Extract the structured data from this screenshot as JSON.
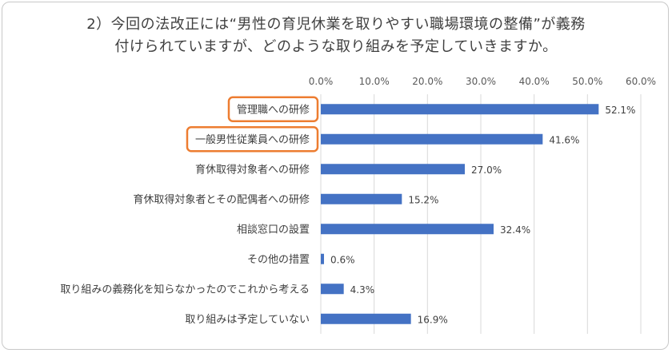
{
  "chart_data": {
    "type": "bar",
    "orientation": "horizontal",
    "title_lines": [
      "2）今回の法改正には“男性の育児休業を取りやすい職場環境の整備”が義務",
      "付けられていますが、どのような取り組みを予定していきますか。"
    ],
    "categories": [
      "管理職への研修",
      "一般男性従業員への研修",
      "育休取得対象者への研修",
      "育休取得対象者とその配偶者への研修",
      "相談窓口の設置",
      "その他の措置",
      "取り組みの義務化を知らなかったのでこれから考える",
      "取り組みは予定していない"
    ],
    "values": [
      52.1,
      41.6,
      27.0,
      15.2,
      32.4,
      0.6,
      4.3,
      16.9
    ],
    "value_labels": [
      "52.1%",
      "41.6%",
      "27.0%",
      "15.2%",
      "32.4%",
      "0.6%",
      "4.3%",
      "16.9%"
    ],
    "xlim": [
      0,
      60
    ],
    "x_ticks": [
      "0.0%",
      "10.0%",
      "20.0%",
      "30.0%",
      "40.0%",
      "50.0%",
      "60.0%"
    ],
    "grid": true,
    "highlighted_categories": [
      0,
      1
    ],
    "colors": {
      "bar": "#4472c4",
      "highlight": "#ed7d31",
      "grid": "#d9d9d9"
    }
  }
}
